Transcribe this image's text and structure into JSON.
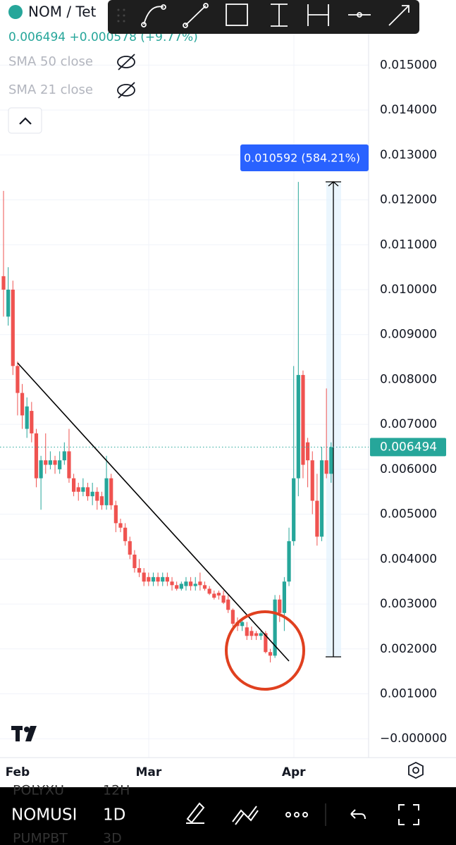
{
  "chart_data": {
    "type": "candlestick",
    "symbol": "NOM / Tet",
    "quote": "0.006494 +0.000578 (+9.77%)",
    "indicators": [
      "SMA 50 close",
      "SMA 21 close"
    ],
    "measure_label": "0.010592 (584.21%)",
    "categories": [
      null,
      null,
      null,
      "Feb",
      null,
      null,
      null,
      null,
      null,
      null,
      null,
      null,
      null,
      null,
      null,
      null,
      null,
      null,
      null,
      null,
      null,
      null,
      null,
      null,
      null,
      null,
      null,
      null,
      null,
      null,
      null,
      "Mar",
      null,
      null,
      null,
      null,
      null,
      null,
      null,
      null,
      null,
      null,
      null,
      null,
      null,
      null,
      null,
      null,
      null,
      null,
      null,
      null,
      null,
      null,
      null,
      null,
      null,
      null,
      null,
      null,
      null,
      null,
      "Apr",
      null,
      null,
      null,
      null,
      null,
      null,
      null,
      null
    ],
    "open": [
      0.0103,
      0.0094,
      0.01,
      0.0083,
      0.0077,
      0.0069,
      0.0073,
      0.0068,
      0.0058,
      0.0062,
      0.0061,
      0.0062,
      0.006,
      0.0062,
      0.0064,
      0.0058,
      0.0056,
      0.0055,
      0.0056,
      0.0054,
      0.0055,
      0.0054,
      0.0052,
      0.0058,
      0.0052,
      0.0048,
      0.0047,
      0.0044,
      0.0041,
      0.0038,
      0.0037,
      0.0036,
      0.0035,
      0.0036,
      0.0035,
      0.0036,
      0.0035,
      0.00342,
      0.00334,
      0.0034,
      0.0035,
      0.0034,
      0.0035,
      0.00342,
      0.00334,
      0.00323,
      0.00325,
      0.00319,
      0.0031,
      0.00287,
      0.0026,
      0.00251,
      0.00248,
      0.0024,
      0.00235,
      0.00229,
      0.00235,
      0.00193,
      0.00185,
      0.0031,
      0.0028,
      0.0035,
      0.0044,
      0.0058,
      0.0081,
      0.0066,
      0.0062,
      0.0053,
      0.0045,
      0.0062,
      0.0059
    ],
    "high": [
      0.0122,
      0.0105,
      0.0102,
      0.0084,
      0.0079,
      0.0076,
      0.0075,
      0.0069,
      0.0063,
      0.0068,
      0.0064,
      0.0063,
      0.0064,
      0.0066,
      0.0069,
      0.0059,
      0.0057,
      0.0058,
      0.0057,
      0.0057,
      0.0056,
      0.0055,
      0.0063,
      0.0059,
      0.0053,
      0.0049,
      0.0048,
      0.0045,
      0.0042,
      0.004,
      0.0038,
      0.0037,
      0.0037,
      0.0037,
      0.0037,
      0.0037,
      0.0036,
      0.0035,
      0.0035,
      0.0036,
      0.0036,
      0.0036,
      0.0037,
      0.0035,
      0.0034,
      0.0033,
      0.0033,
      0.0033,
      0.0032,
      0.0029,
      0.0027,
      0.0027,
      0.0026,
      0.0025,
      0.0024,
      0.0024,
      0.0024,
      0.002,
      0.0032,
      0.0032,
      0.0036,
      0.0047,
      0.0083,
      0.0124,
      0.0082,
      0.0067,
      0.0064,
      0.0059,
      0.0065,
      0.0078,
      0.0066
    ],
    "low": [
      0.0094,
      0.0092,
      0.0081,
      0.0072,
      0.0069,
      0.0067,
      0.0066,
      0.0056,
      0.0051,
      0.0059,
      0.006,
      0.0059,
      0.0059,
      0.0061,
      0.0057,
      0.0054,
      0.0053,
      0.0054,
      0.0053,
      0.0052,
      0.0051,
      0.0051,
      0.0051,
      0.0051,
      0.0046,
      0.0046,
      0.0043,
      0.004,
      0.0037,
      0.0036,
      0.0034,
      0.0034,
      0.0034,
      0.0034,
      0.0034,
      0.0034,
      0.0033,
      0.0033,
      0.0033,
      0.0033,
      0.0033,
      0.0033,
      0.0033,
      0.0033,
      0.0032,
      0.0031,
      0.0031,
      0.003,
      0.0028,
      0.0025,
      0.0024,
      0.0024,
      0.0022,
      0.0022,
      0.0022,
      0.0022,
      0.0019,
      0.0017,
      0.0018,
      0.0026,
      0.0024,
      0.0034,
      0.0043,
      0.0054,
      0.0058,
      0.0056,
      0.005,
      0.0043,
      0.0044,
      0.0058,
      0.0057
    ],
    "close": [
      0.01,
      0.01,
      0.0083,
      0.0077,
      0.0072,
      0.0074,
      0.0068,
      0.0058,
      0.0062,
      0.0061,
      0.0062,
      0.0061,
      0.0062,
      0.0064,
      0.0058,
      0.0055,
      0.0055,
      0.0056,
      0.0054,
      0.0055,
      0.0053,
      0.0052,
      0.0058,
      0.0052,
      0.0048,
      0.0047,
      0.0044,
      0.0041,
      0.0038,
      0.0037,
      0.0035,
      0.0035,
      0.0036,
      0.0035,
      0.0036,
      0.0035,
      0.00342,
      0.00334,
      0.00345,
      0.0035,
      0.0034,
      0.00345,
      0.00342,
      0.00334,
      0.00323,
      0.00314,
      0.00319,
      0.00303,
      0.00287,
      0.00256,
      0.00251,
      0.0026,
      0.00229,
      0.00229,
      0.00229,
      0.00235,
      0.00193,
      0.00185,
      0.0031,
      0.0028,
      0.0035,
      0.0044,
      0.0058,
      0.0081,
      0.0061,
      0.0062,
      0.0053,
      0.0045,
      0.0062,
      0.0059,
      0.006494
    ],
    "up_color": "#26a69a",
    "down_color": "#ef5350",
    "ylim": [
      -0.00042,
      0.01645
    ],
    "yticks": [
      {
        "value": 0.015,
        "label": "0.015000"
      },
      {
        "value": 0.014,
        "label": "0.014000"
      },
      {
        "value": 0.013,
        "label": "0.013000"
      },
      {
        "value": 0.012,
        "label": "0.012000"
      },
      {
        "value": 0.011,
        "label": "0.011000"
      },
      {
        "value": 0.01,
        "label": "0.010000"
      },
      {
        "value": 0.009,
        "label": "0.009000"
      },
      {
        "value": 0.008,
        "label": "0.008000"
      },
      {
        "value": 0.007,
        "label": "0.007000"
      },
      {
        "value": 0.006,
        "label": "0.006000"
      },
      {
        "value": 0.005,
        "label": "0.005000"
      },
      {
        "value": 0.004,
        "label": "0.004000"
      },
      {
        "value": 0.003,
        "label": "0.003000"
      },
      {
        "value": 0.002,
        "label": "0.002000"
      },
      {
        "value": 0.001,
        "label": "0.001000"
      },
      {
        "value": 0,
        "label": "−0.000000"
      }
    ],
    "grid": true
  },
  "bottom_bar": {
    "symbol": "NOMUSI",
    "interval": "1D",
    "behind": [
      [
        "POLYXU",
        "12H"
      ],
      [
        "PUMPBT",
        "3D"
      ]
    ]
  }
}
